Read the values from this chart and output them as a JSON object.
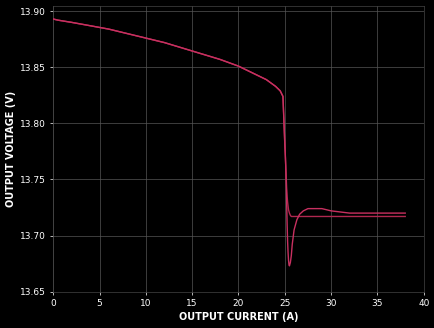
{
  "background_color": "#000000",
  "plot_bg_color": "#000000",
  "grid_color": "#555555",
  "line_color": "#b02850",
  "line_color2": "#c83060",
  "xlabel": "OUTPUT CURRENT (A)",
  "ylabel": "OUTPUT VOLTAGE (V)",
  "xlim": [
    0,
    40
  ],
  "ylim": [
    13.65,
    13.905
  ],
  "xticks": [
    0,
    5,
    10,
    15,
    20,
    25,
    30,
    35,
    40
  ],
  "yticks": [
    13.65,
    13.7,
    13.75,
    13.8,
    13.85,
    13.9
  ],
  "axis_label_fontsize": 7,
  "tick_fontsize": 6.5,
  "line1_x": [
    0,
    0.5,
    2,
    4,
    6,
    8,
    10,
    12,
    14,
    16,
    18,
    20,
    22,
    23,
    24,
    24.5,
    24.8,
    25.0,
    25.05,
    25.1,
    25.15,
    25.2,
    25.25,
    25.3,
    25.4,
    25.5,
    25.6,
    25.7,
    25.8,
    26.0,
    26.5,
    27.0,
    27.5,
    28.0,
    29.0,
    30.0,
    31.0,
    32.0,
    33.0,
    34.0,
    35.0,
    36.0,
    38.0
  ],
  "line1_y": [
    13.893,
    13.892,
    13.89,
    13.887,
    13.884,
    13.88,
    13.876,
    13.872,
    13.867,
    13.862,
    13.857,
    13.851,
    13.843,
    13.839,
    13.833,
    13.829,
    13.824,
    13.781,
    13.772,
    13.762,
    13.752,
    13.742,
    13.735,
    13.73,
    13.723,
    13.72,
    13.718,
    13.717,
    13.717,
    13.717,
    13.717,
    13.717,
    13.717,
    13.717,
    13.717,
    13.717,
    13.717,
    13.717,
    13.717,
    13.717,
    13.717,
    13.717,
    13.717
  ],
  "line2_x": [
    0,
    0.5,
    2,
    4,
    6,
    8,
    10,
    12,
    14,
    16,
    18,
    20,
    22,
    23,
    24,
    24.5,
    24.8,
    25.0,
    25.05,
    25.1,
    25.15,
    25.2,
    25.25,
    25.3,
    25.35,
    25.4,
    25.45,
    25.5,
    25.6,
    25.7,
    25.8,
    26.0,
    26.3,
    26.6,
    27.0,
    27.5,
    28.0,
    29.0,
    30.0,
    31.0,
    32.0,
    33.0,
    34.0,
    35.0,
    36.0,
    38.0
  ],
  "line2_y": [
    13.893,
    13.892,
    13.89,
    13.887,
    13.884,
    13.88,
    13.876,
    13.872,
    13.867,
    13.862,
    13.857,
    13.851,
    13.843,
    13.839,
    13.833,
    13.829,
    13.824,
    13.782,
    13.773,
    13.762,
    13.748,
    13.728,
    13.71,
    13.695,
    13.685,
    13.678,
    13.674,
    13.673,
    13.676,
    13.682,
    13.692,
    13.705,
    13.714,
    13.719,
    13.722,
    13.724,
    13.724,
    13.724,
    13.722,
    13.721,
    13.72,
    13.72,
    13.72,
    13.72,
    13.72,
    13.72
  ]
}
